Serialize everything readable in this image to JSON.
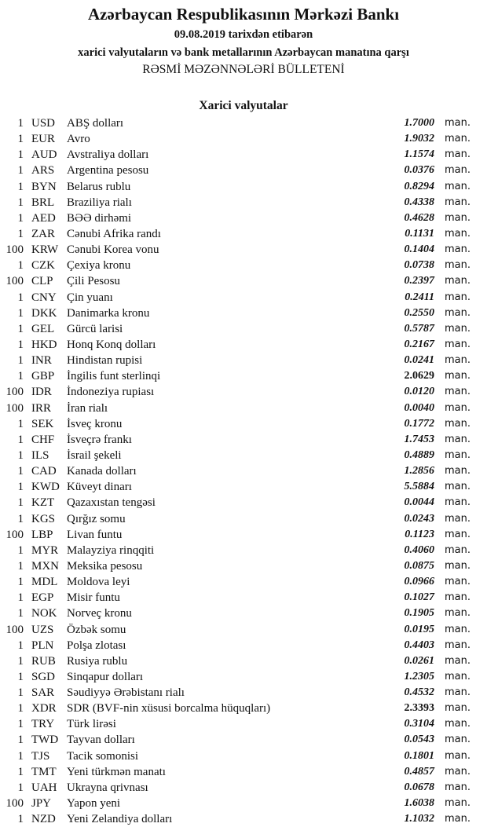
{
  "header": {
    "title": "Azərbaycan Respublikasının Mərkəzi Bankı",
    "date_line": "09.08.2019  tarixdən etibarən",
    "subtitle": "xarici valyutaların və bank metallarının Azərbaycan manatına qarşı",
    "bulletin": "RƏSMİ MƏZƏNNƏLƏRİ BÜLLETENİ",
    "section": "Xarici valyutalar"
  },
  "unit": "man.",
  "rows": [
    {
      "n": "1",
      "code": "USD",
      "name": "ABŞ dolları",
      "rate": "1.7000"
    },
    {
      "n": "1",
      "code": "EUR",
      "name": "Avro",
      "rate": "1.9032"
    },
    {
      "n": "1",
      "code": "AUD",
      "name": "Avstraliya dolları",
      "rate": "1.1574"
    },
    {
      "n": "1",
      "code": "ARS",
      "name": "Argentina pesosu",
      "rate": "0.0376"
    },
    {
      "n": "1",
      "code": "BYN",
      "name": "Belarus rublu",
      "rate": "0.8294"
    },
    {
      "n": "1",
      "code": "BRL",
      "name": "Braziliya rialı",
      "rate": "0.4338"
    },
    {
      "n": "1",
      "code": "AED",
      "name": "BƏƏ dirhəmi",
      "rate": "0.4628"
    },
    {
      "n": "1",
      "code": "ZAR",
      "name": "Cənubi Afrika randı",
      "rate": "0.1131"
    },
    {
      "n": "100",
      "code": "KRW",
      "name": "Cənubi Korea vonu",
      "rate": "0.1404"
    },
    {
      "n": "1",
      "code": "CZK",
      "name": "Çexiya kronu",
      "rate": "0.0738"
    },
    {
      "n": "100",
      "code": "CLP",
      "name": "Çili Pesosu",
      "rate": "0.2397"
    },
    {
      "n": "1",
      "code": "CNY",
      "name": "Çin yuanı",
      "rate": "0.2411"
    },
    {
      "n": "1",
      "code": "DKK",
      "name": "Danimarka kronu",
      "rate": "0.2550"
    },
    {
      "n": "1",
      "code": "GEL",
      "name": "Gürcü larisi",
      "rate": "0.5787"
    },
    {
      "n": "1",
      "code": "HKD",
      "name": "Honq Konq dolları",
      "rate": "0.2167"
    },
    {
      "n": "1",
      "code": "INR",
      "name": "Hindistan rupisi",
      "rate": "0.0241"
    },
    {
      "n": "1",
      "code": "GBP",
      "name": "İngilis funt sterlinqi",
      "rate": "2.0629",
      "upright": true
    },
    {
      "n": "100",
      "code": "IDR",
      "name": "İndoneziya rupiası",
      "rate": "0.0120"
    },
    {
      "n": "100",
      "code": "IRR",
      "name": "İran rialı",
      "rate": "0.0040"
    },
    {
      "n": "1",
      "code": "SEK",
      "name": "İsveç kronu",
      "rate": "0.1772"
    },
    {
      "n": "1",
      "code": "CHF",
      "name": "İsveçrə frankı",
      "rate": "1.7453"
    },
    {
      "n": "1",
      "code": "ILS",
      "name": "İsrail şekeli",
      "rate": "0.4889"
    },
    {
      "n": "1",
      "code": "CAD",
      "name": "Kanada dolları",
      "rate": "1.2856"
    },
    {
      "n": "1",
      "code": "KWD",
      "name": "Küveyt dinarı",
      "rate": "5.5884"
    },
    {
      "n": "1",
      "code": "KZT",
      "name": "Qazaxıstan tengəsi",
      "rate": "0.0044"
    },
    {
      "n": "1",
      "code": "KGS",
      "name": "Qırğız somu",
      "rate": "0.0243"
    },
    {
      "n": "100",
      "code": "LBP",
      "name": "Livan funtu",
      "rate": "0.1123"
    },
    {
      "n": "1",
      "code": "MYR",
      "name": "Malayziya rinqqiti",
      "rate": "0.4060"
    },
    {
      "n": "1",
      "code": "MXN",
      "name": "Meksika pesosu",
      "rate": "0.0875"
    },
    {
      "n": "1",
      "code": "MDL",
      "name": "Moldova leyi",
      "rate": "0.0966"
    },
    {
      "n": "1",
      "code": "EGP",
      "name": "Misir funtu",
      "rate": "0.1027"
    },
    {
      "n": "1",
      "code": "NOK",
      "name": "Norveç kronu",
      "rate": "0.1905"
    },
    {
      "n": "100",
      "code": "UZS",
      "name": "Özbək somu",
      "rate": "0.0195"
    },
    {
      "n": "1",
      "code": "PLN",
      "name": "Polşa zlotası",
      "rate": "0.4403"
    },
    {
      "n": "1",
      "code": "RUB",
      "name": "Rusiya rublu",
      "rate": "0.0261"
    },
    {
      "n": "1",
      "code": "SGD",
      "name": "Sinqapur dolları",
      "rate": "1.2305"
    },
    {
      "n": "1",
      "code": "SAR",
      "name": "Səudiyyə Ərəbistanı rialı",
      "rate": "0.4532"
    },
    {
      "n": "1",
      "code": "XDR",
      "name": "SDR (BVF-nin xüsusi borcalma hüquqları)",
      "rate": "2.3393",
      "upright": true
    },
    {
      "n": "1",
      "code": "TRY",
      "name": "Türk lirəsi",
      "rate": "0.3104"
    },
    {
      "n": "1",
      "code": "TWD",
      "name": "Tayvan dolları",
      "rate": "0.0543"
    },
    {
      "n": "1",
      "code": "TJS",
      "name": "Tacik somonisi",
      "rate": "0.1801"
    },
    {
      "n": "1",
      "code": "TMT",
      "name": "Yeni türkmən manatı",
      "rate": "0.4857"
    },
    {
      "n": "1",
      "code": "UAH",
      "name": "Ukrayna qrivnası",
      "rate": "0.0678"
    },
    {
      "n": "100",
      "code": "JPY",
      "name": "Yapon yeni",
      "rate": "1.6038"
    },
    {
      "n": "1",
      "code": "NZD",
      "name": "Yeni Zelandiya dolları",
      "rate": "1.1032"
    }
  ]
}
